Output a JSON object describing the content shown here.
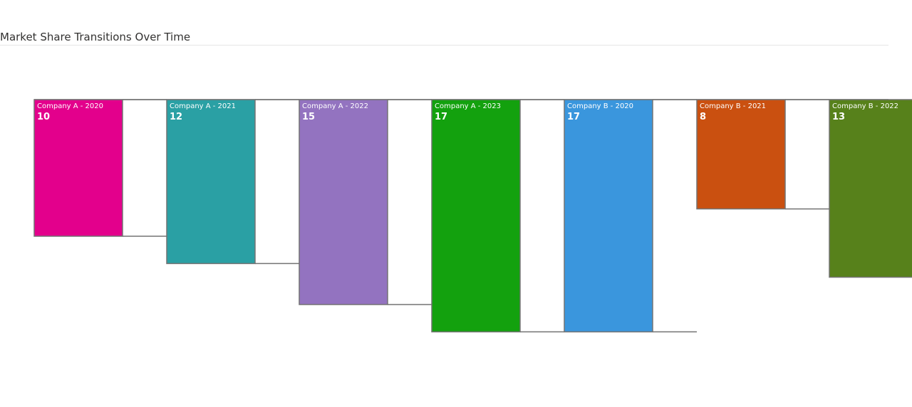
{
  "page": {
    "title": "Market Share Transitions Over Time"
  },
  "chart_data": {
    "type": "bar",
    "title": "Market Share Transitions Over Time",
    "categories": [
      "Company A - 2020",
      "Company A - 2021",
      "Company A - 2022",
      "Company A - 2023",
      "Company B - 2020",
      "Company B - 2021",
      "Company B - 2022"
    ],
    "values": [
      10,
      12,
      15,
      17,
      17,
      8,
      13
    ],
    "colors": [
      "#e3008c",
      "#2aa0a4",
      "#9373c0",
      "#13a10e",
      "#3a96dd",
      "#ca5010",
      "#57811b"
    ],
    "border_color": "#737373",
    "ylim": [
      0,
      17
    ],
    "grid": false,
    "legend": "none"
  }
}
